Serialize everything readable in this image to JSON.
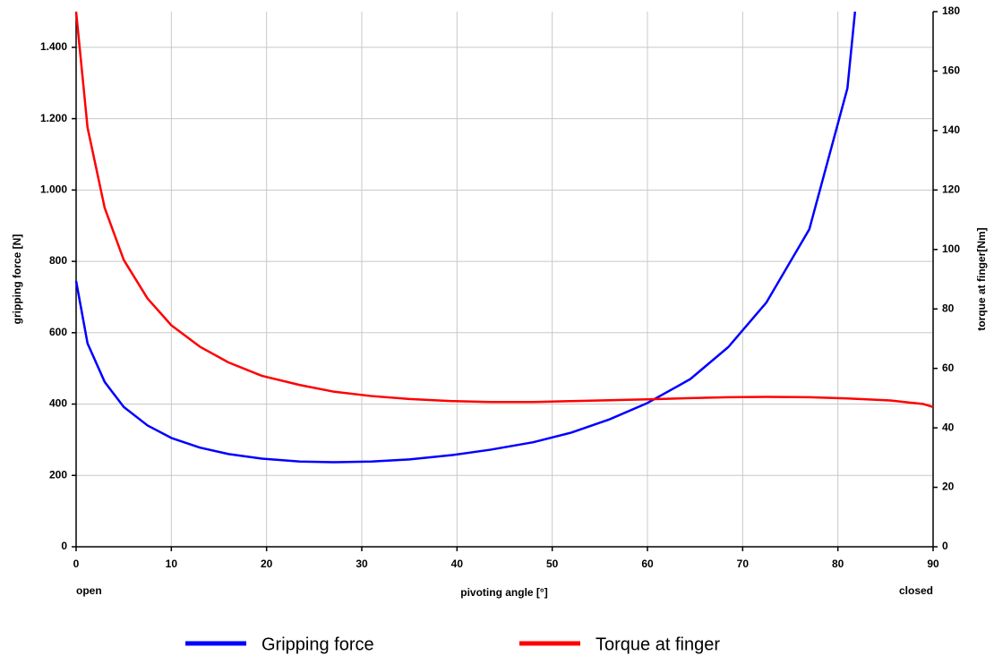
{
  "chart_data": {
    "type": "line",
    "xlabel": "pivoting angle [°]",
    "ylabel": "gripping force [N]",
    "y2label": "torque at finger[Nm]",
    "x_start_label": "open",
    "x_end_label": "closed",
    "xlim": [
      0,
      90
    ],
    "xticks": [
      0,
      10,
      20,
      30,
      40,
      50,
      60,
      70,
      80,
      90
    ],
    "ylim": [
      0,
      1500
    ],
    "yticks": [
      0,
      200,
      400,
      600,
      800,
      {
        "value": 1000,
        "label": "1.000"
      },
      {
        "value": 1200,
        "label": "1.200"
      },
      {
        "value": 1400,
        "label": "1.400"
      }
    ],
    "y2lim": [
      0,
      180
    ],
    "y2ticks": [
      0,
      20,
      40,
      60,
      80,
      100,
      120,
      140,
      160,
      180
    ],
    "grid": true,
    "legend": "bottom",
    "series": [
      {
        "name": "Gripping force",
        "color": "#0000ff",
        "x": [
          0,
          1.2,
          3,
          5,
          7.5,
          10,
          13,
          16,
          19.5,
          23.5,
          27,
          31,
          35,
          39.5,
          43.5,
          48,
          52,
          56,
          60,
          64.5,
          68.5,
          72.5,
          77,
          81,
          81.8
        ],
        "values": [
          745,
          570,
          462,
          392,
          340,
          305,
          278,
          260,
          247,
          239,
          237,
          239,
          245,
          257,
          272,
          293,
          320,
          357,
          403,
          470,
          560,
          685,
          890,
          1285,
          1500
        ]
      },
      {
        "name": "Torque at finger",
        "color": "#ff0000",
        "axis": "y2",
        "x": [
          0,
          1.2,
          3,
          5,
          7.5,
          10,
          13,
          16,
          19.5,
          23.5,
          27,
          31,
          35,
          39.5,
          43.5,
          48,
          52,
          56,
          60,
          64.5,
          68.5,
          72.5,
          77,
          81,
          85.5,
          89,
          90
        ],
        "values": [
          180,
          141,
          114,
          96.5,
          83.5,
          74.5,
          67.3,
          62,
          57.5,
          54.4,
          52.2,
          50.7,
          49.7,
          49,
          48.7,
          48.7,
          49,
          49.3,
          49.6,
          50,
          50.3,
          50.4,
          50.3,
          49.9,
          49.2,
          48,
          47
        ]
      }
    ]
  }
}
